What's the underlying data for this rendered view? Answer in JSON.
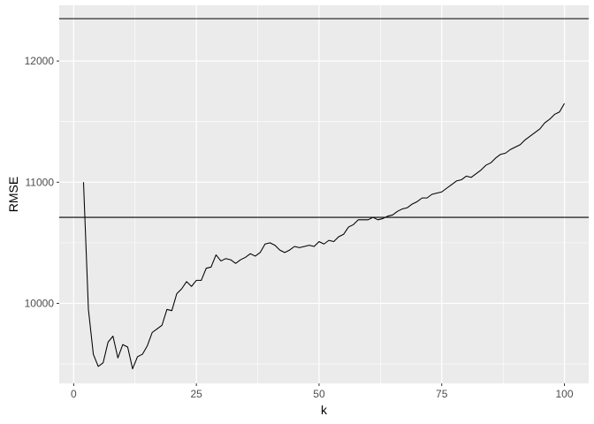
{
  "chart_data": {
    "type": "line",
    "title": "",
    "xlabel": "k",
    "ylabel": "RMSE",
    "xlim": [
      -2.95,
      104.95
    ],
    "ylim": [
      9340,
      12460
    ],
    "x_ticks": [
      0,
      25,
      50,
      75,
      100
    ],
    "y_ticks": [
      10000,
      11000,
      12000
    ],
    "grid": true,
    "background": "#ebebeb",
    "grid_major_color": "#ffffff",
    "line_color": "#000000",
    "hlines": [
      12350,
      10710
    ],
    "series": [
      {
        "x": [
          2,
          3,
          4,
          5,
          6,
          7,
          8,
          9,
          10,
          11,
          12,
          13,
          14,
          15,
          16,
          17,
          18,
          19,
          20,
          21,
          22,
          23,
          24,
          25,
          26,
          27,
          28,
          29,
          30,
          31,
          32,
          33,
          34,
          35,
          36,
          37,
          38,
          39,
          40,
          41,
          42,
          43,
          44,
          45,
          46,
          47,
          48,
          49,
          50,
          51,
          52,
          53,
          54,
          55,
          56,
          57,
          58,
          59,
          60,
          61,
          62,
          63,
          64,
          65,
          66,
          67,
          68,
          69,
          70,
          71,
          72,
          73,
          74,
          75,
          76,
          77,
          78,
          79,
          80,
          81,
          82,
          83,
          84,
          85,
          86,
          87,
          88,
          89,
          90,
          91,
          92,
          93,
          94,
          95,
          96,
          97,
          98,
          99,
          100
        ],
        "values": [
          11000,
          9950,
          9580,
          9480,
          9510,
          9680,
          9730,
          9550,
          9660,
          9640,
          9460,
          9560,
          9580,
          9650,
          9760,
          9790,
          9820,
          9950,
          9940,
          10080,
          10120,
          10180,
          10140,
          10190,
          10190,
          10290,
          10300,
          10400,
          10350,
          10370,
          10360,
          10330,
          10360,
          10380,
          10410,
          10390,
          10420,
          10490,
          10500,
          10480,
          10440,
          10420,
          10440,
          10470,
          10460,
          10470,
          10480,
          10470,
          10510,
          10490,
          10520,
          10510,
          10550,
          10570,
          10630,
          10650,
          10690,
          10690,
          10690,
          10710,
          10690,
          10700,
          10720,
          10730,
          10760,
          10780,
          10790,
          10820,
          10840,
          10870,
          10870,
          10900,
          10910,
          10920,
          10950,
          10980,
          11010,
          11020,
          11050,
          11040,
          11070,
          11100,
          11140,
          11160,
          11200,
          11230,
          11240,
          11270,
          11290,
          11310,
          11350,
          11380,
          11410,
          11440,
          11490,
          11520,
          11560,
          11580,
          11650
        ]
      }
    ]
  }
}
